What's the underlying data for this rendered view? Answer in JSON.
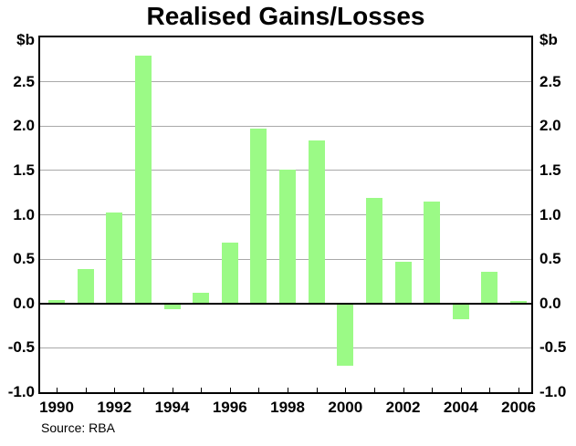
{
  "chart": {
    "title": "Realised Gains/Losses",
    "unit_left": "$b",
    "unit_right": "$b",
    "source": "Source: RBA"
  },
  "chart_data": {
    "type": "bar",
    "title": "Realised Gains/Losses",
    "ylabel": "$b",
    "xlabel": "",
    "categories": [
      "1990",
      "1991",
      "1992",
      "1993",
      "1994",
      "1995",
      "1996",
      "1997",
      "1998",
      "1999",
      "2000",
      "2001",
      "2002",
      "2003",
      "2004",
      "2005",
      "2006"
    ],
    "values": [
      0.04,
      0.39,
      1.03,
      2.79,
      -0.06,
      0.12,
      0.69,
      1.97,
      1.51,
      1.84,
      -0.7,
      1.19,
      0.47,
      1.15,
      -0.18,
      0.36,
      0.03
    ],
    "series_name": "Realised gains/losses ($b)",
    "ylim": [
      -1.0,
      3.0
    ],
    "y_tick_labels": [
      "2.5",
      "2.0",
      "1.5",
      "1.0",
      "0.5",
      "0.0",
      "-0.5",
      "-1.0"
    ],
    "x_tick_labels": [
      "1990",
      "1992",
      "1994",
      "1996",
      "1998",
      "2000",
      "2002",
      "2004",
      "2006"
    ],
    "grid": true,
    "legend": "none",
    "bar_color": "#9BFA86",
    "gridline_color": "#A9A9A9",
    "axis_color": "#000000",
    "source": "Source: RBA"
  }
}
